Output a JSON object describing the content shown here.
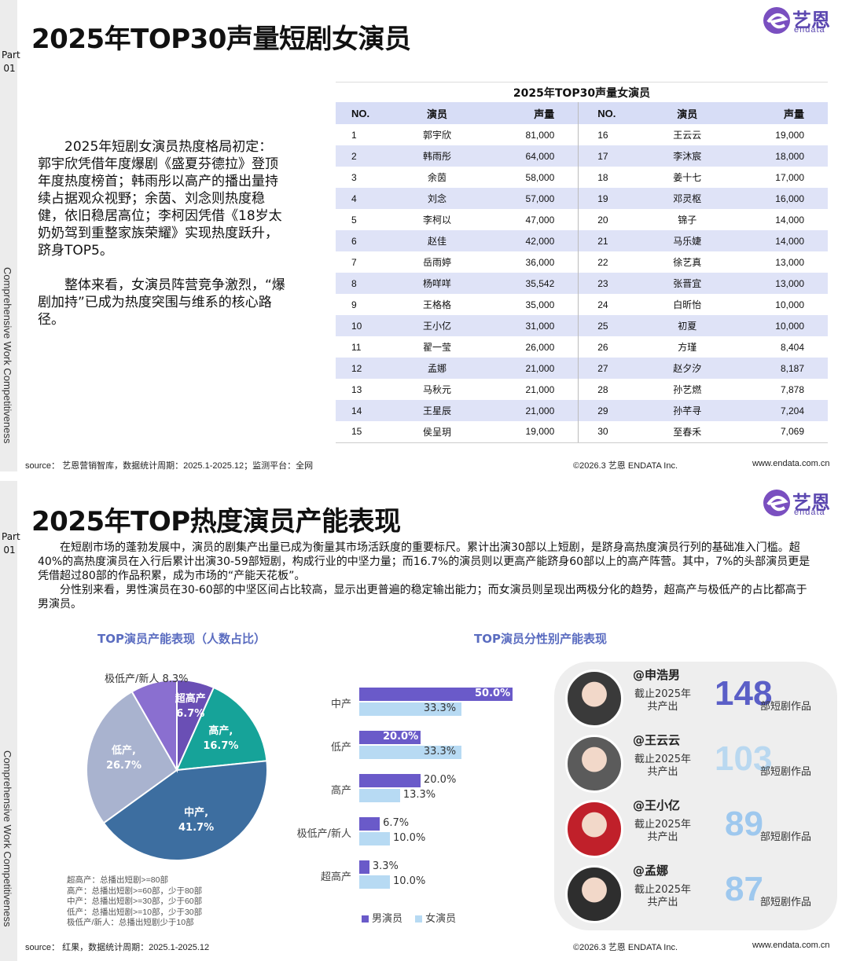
{
  "sidebar": {
    "part_label": "Part\n01",
    "vertical_text": "Comprehensive Work Competitiveness"
  },
  "section1": {
    "title": "2025年TOP30声量短剧女演员",
    "para1": "2025年短剧女演员热度格局初定：郭宇欣凭借年度爆剧《盛夏芬德拉》登顶年度热度榜首；韩雨彤以高产的播出量持续占据观众视野；余茵、刘念则热度稳健，依旧稳居高位；李柯因凭借《18岁太奶奶驾到重整家族荣耀》实现热度跃升，跻身TOP5。",
    "para2": "整体来看，女演员阵营竞争激烈，“爆剧加持”已成为热度突围与维系的核心路径。",
    "source": "source： 艺恩营销智库，数据统计周期：2025.1-2025.12；监测平台：全网",
    "copyright": "©2026.3  艺恩 ENDATA Inc.",
    "website": "www.endata.com.cn"
  },
  "logo": {
    "cn": "艺恩",
    "en": "endata"
  },
  "table": {
    "title": "2025年TOP30声量女演员",
    "headers": [
      "NO.",
      "演员",
      "声量",
      "NO.",
      "演员",
      "声量"
    ],
    "rows": [
      [
        "1",
        "郭宇欣",
        "81,000",
        "16",
        "王云云",
        "19,000"
      ],
      [
        "2",
        "韩雨彤",
        "64,000",
        "17",
        "李沐宸",
        "18,000"
      ],
      [
        "3",
        "余茵",
        "58,000",
        "18",
        "姜十七",
        "17,000"
      ],
      [
        "4",
        "刘念",
        "57,000",
        "19",
        "邓灵枢",
        "16,000"
      ],
      [
        "5",
        "李柯以",
        "47,000",
        "20",
        "锦子",
        "14,000"
      ],
      [
        "6",
        "赵佳",
        "42,000",
        "21",
        "马乐婕",
        "14,000"
      ],
      [
        "7",
        "岳雨婷",
        "36,000",
        "22",
        "徐艺真",
        "13,000"
      ],
      [
        "8",
        "杨咩咩",
        "35,542",
        "23",
        "张晋宜",
        "13,000"
      ],
      [
        "9",
        "王格格",
        "35,000",
        "24",
        "白昕怡",
        "10,000"
      ],
      [
        "10",
        "王小亿",
        "31,000",
        "25",
        "初夏",
        "10,000"
      ],
      [
        "11",
        "翟一莹",
        "26,000",
        "26",
        "方瑾",
        "8,404"
      ],
      [
        "12",
        "孟娜",
        "21,000",
        "27",
        "赵夕汐",
        "8,187"
      ],
      [
        "13",
        "马秋元",
        "21,000",
        "28",
        "孙艺燃",
        "7,878"
      ],
      [
        "14",
        "王星辰",
        "21,000",
        "29",
        "孙芊寻",
        "7,204"
      ],
      [
        "15",
        "侯呈玥",
        "19,000",
        "30",
        "至春禾",
        "7,069"
      ]
    ]
  },
  "section2": {
    "title": "2025年TOP热度演员产能表现",
    "para1": "在短剧市场的蓬勃发展中，演员的剧集产出量已成为衡量其市场活跃度的重要标尺。累计出演30部以上短剧，是跻身高热度演员行列的基础准入门槛。超40%的高热度演员在入行后累计出演30-59部短剧，构成行业的中坚力量；而16.7%的演员则以更高产能跻身60部以上的高产阵营。其中，7%的头部演员更是凭借超过80部的作品积累，成为市场的“产能天花板”。",
    "para2": "分性别来看，男性演员在30-60部的中坚区间占比较高，显示出更普遍的稳定输出能力；而女演员则呈现出两极分化的趋势，超高产与极低产的占比都高于男演员。",
    "pie_title": "TOP演员产能表现（人数占比）",
    "bar_title": "TOP演员分性别产能表现",
    "legend_note": [
      "超高产：总播出短剧>=80部",
      "高产：总播出短剧>=60部，少于80部",
      "中产：总播出短剧>=30部，少于60部",
      "低产：总播出短剧>=10部，少于30部",
      "极低产/新人：总播出短剧少于10部"
    ],
    "source": "source： 红果，数据统计周期：2025.1-2025.12",
    "copyright": "©2026.3  艺恩 ENDATA Inc.",
    "website": "www.endata.com.cn"
  },
  "chart_data": [
    {
      "type": "pie",
      "title": "TOP演员产能表现（人数占比）",
      "slices": [
        {
          "label": "超高产",
          "value": 6.7,
          "display": "6.7%",
          "color": "#6a4fb5"
        },
        {
          "label": "高产",
          "value": 16.7,
          "display": "16.7%",
          "color": "#16a399"
        },
        {
          "label": "中产",
          "value": 41.7,
          "display": "41.7%",
          "color": "#3d6ea0"
        },
        {
          "label": "低产",
          "value": 26.7,
          "display": "26.7%",
          "color": "#a9b3cf"
        },
        {
          "label": "极低产/新人",
          "value": 8.3,
          "display": "8.3%",
          "color": "#8a6fd0"
        }
      ]
    },
    {
      "type": "bar",
      "orientation": "horizontal",
      "title": "TOP演员分性别产能表现",
      "categories": [
        "中产",
        "低产",
        "高产",
        "极低产/新人",
        "超高产"
      ],
      "series": [
        {
          "name": "男演员",
          "values": [
            50.0,
            20.0,
            20.0,
            6.7,
            3.3
          ],
          "labels": [
            "50.0%",
            "20.0%",
            "20.0%",
            "6.7%",
            "3.3%"
          ],
          "color": "#6a5ac9"
        },
        {
          "name": "女演员",
          "values": [
            33.3,
            33.3,
            13.3,
            10.0,
            10.0
          ],
          "labels": [
            "33.3%",
            "33.3%",
            "13.3%",
            "10.0%",
            "10.0%"
          ],
          "color": "#b7daf3"
        }
      ]
    }
  ],
  "actors": [
    {
      "name": "@申浩男",
      "sub": "截止2025年\n共产出",
      "count": "148",
      "unit": "部短剧作品",
      "color": "#5b5fc7"
    },
    {
      "name": "@王云云",
      "sub": "截止2025年\n共产出",
      "count": "103",
      "unit": "部短剧作品",
      "color": "#b9d8f0"
    },
    {
      "name": "@王小亿",
      "sub": "截止2025年\n共产出",
      "count": "89",
      "unit": "部短剧作品",
      "color": "#9ec8ee"
    },
    {
      "name": "@孟娜",
      "sub": "截止2025年\n共产出",
      "count": "87",
      "unit": "部短剧作品",
      "color": "#9ec8ee"
    }
  ]
}
